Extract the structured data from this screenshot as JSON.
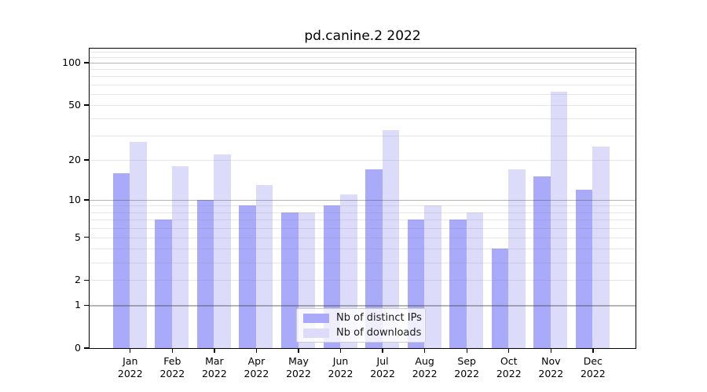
{
  "chart_data": {
    "type": "bar",
    "title": "pd.canine.2 2022",
    "categories": [
      "Jan",
      "Feb",
      "Mar",
      "Apr",
      "May",
      "Jun",
      "Jul",
      "Aug",
      "Sep",
      "Oct",
      "Nov",
      "Dec"
    ],
    "x_year_label": "2022",
    "series": [
      {
        "name": "Nb of distinct IPs",
        "color": "#aaaafa",
        "values": [
          16,
          7,
          10,
          9,
          8,
          9,
          17,
          7,
          7,
          4,
          15,
          12
        ]
      },
      {
        "name": "Nb of downloads",
        "color": "#dcdcfa",
        "values": [
          27,
          18,
          22,
          13,
          8,
          11,
          33,
          9,
          8,
          17,
          62,
          25
        ]
      }
    ],
    "yscale": "log10(1+x)",
    "ylim": [
      0,
      127.5
    ],
    "y_ticks": [
      0,
      1,
      2,
      5,
      10,
      20,
      50,
      100
    ],
    "y_major_gridlines": [
      1,
      10,
      100
    ],
    "y_minor_gridlines": [
      2,
      3,
      4,
      5,
      6,
      7,
      8,
      9,
      20,
      30,
      40,
      50,
      60,
      70,
      80,
      90,
      110,
      120
    ],
    "grid": true,
    "legend_position": "inside-bottom-center",
    "axis_color": "#000000",
    "gridline_major_color": "rgba(70,70,70,0.40)",
    "gridline_minor_color": "rgba(120,120,120,0.18)"
  }
}
